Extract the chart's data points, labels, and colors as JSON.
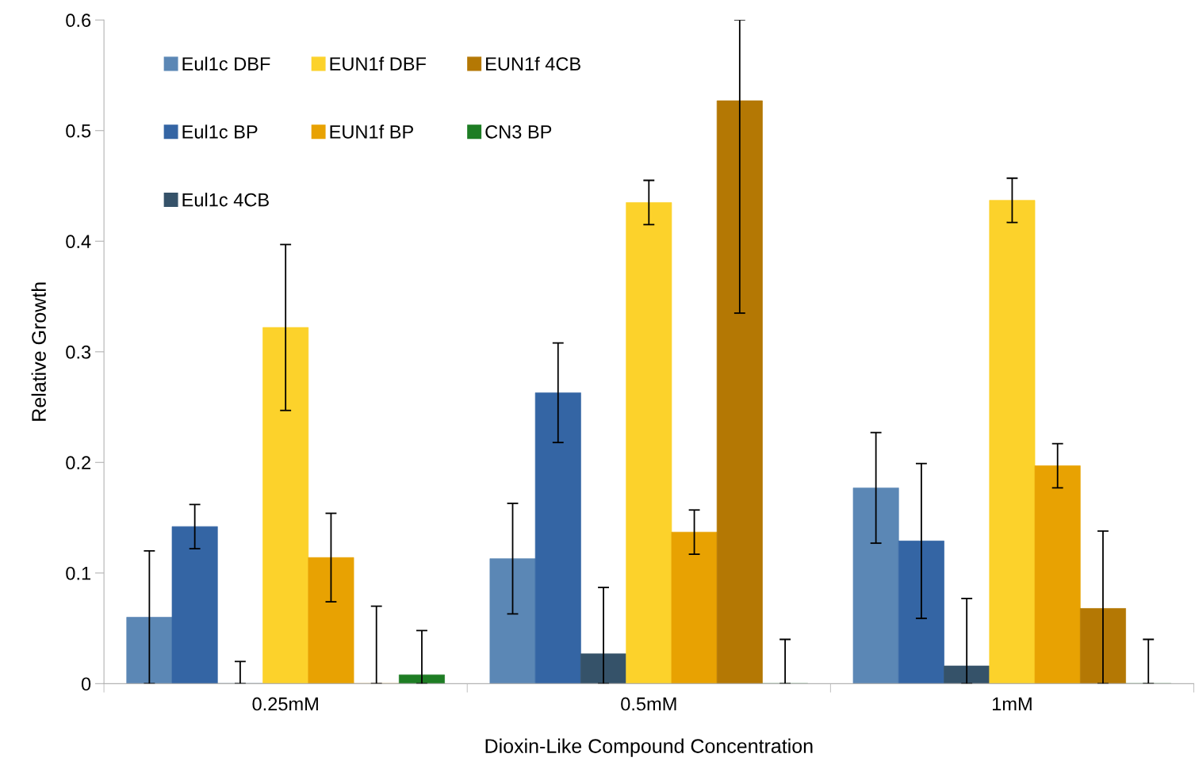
{
  "chart_data": {
    "type": "bar",
    "xlabel": "Dioxin-Like Compound Concentration",
    "ylabel": "Relative Growth",
    "categories": [
      "0.25mM",
      "0.5mM",
      "1mM"
    ],
    "series": [
      {
        "name": "Eul1c DBF",
        "color": "#5b87b5",
        "values": [
          0.06,
          0.113,
          0.177
        ],
        "errors": [
          0.06,
          0.05,
          0.05
        ]
      },
      {
        "name": "Eul1c BP",
        "color": "#3465a4",
        "values": [
          0.142,
          0.263,
          0.129
        ],
        "errors": [
          0.02,
          0.045,
          0.07
        ]
      },
      {
        "name": "Eul1c 4CB",
        "color": "#355269",
        "values": [
          0,
          0.027,
          0.016
        ],
        "errors": [
          [
            0,
            0.02
          ],
          [
            0,
            0.087
          ],
          [
            0,
            0.077
          ]
        ]
      },
      {
        "name": "EUN1f DBF",
        "color": "#fcd22b",
        "values": [
          0.322,
          0.435,
          0.437
        ],
        "errors": [
          0.075,
          0.02,
          0.02
        ]
      },
      {
        "name": "EUN1f BP",
        "color": "#e8a202",
        "values": [
          0.114,
          0.137,
          0.197
        ],
        "errors": [
          0.04,
          0.02,
          0.02
        ]
      },
      {
        "name": "EUN1f 4CB",
        "color": "#b47804",
        "values": [
          0,
          0.527,
          0.068
        ],
        "errors": [
          [
            0,
            0.07
          ],
          [
            0.335,
            0.6
          ],
          [
            0,
            0.138
          ]
        ]
      },
      {
        "name": "CN3 BP",
        "color": "#1e7d24",
        "values": [
          0.008,
          0,
          0
        ],
        "errors": [
          [
            0,
            0.048
          ],
          [
            0,
            0.04
          ],
          [
            0,
            0.04
          ]
        ]
      }
    ],
    "ylim": [
      0,
      0.6
    ],
    "yticks": [
      {
        "value": 0,
        "label": "0"
      },
      0.1,
      0.2,
      0.3,
      0.4,
      0.5,
      0.6
    ],
    "grid": false,
    "legend": "top left"
  }
}
